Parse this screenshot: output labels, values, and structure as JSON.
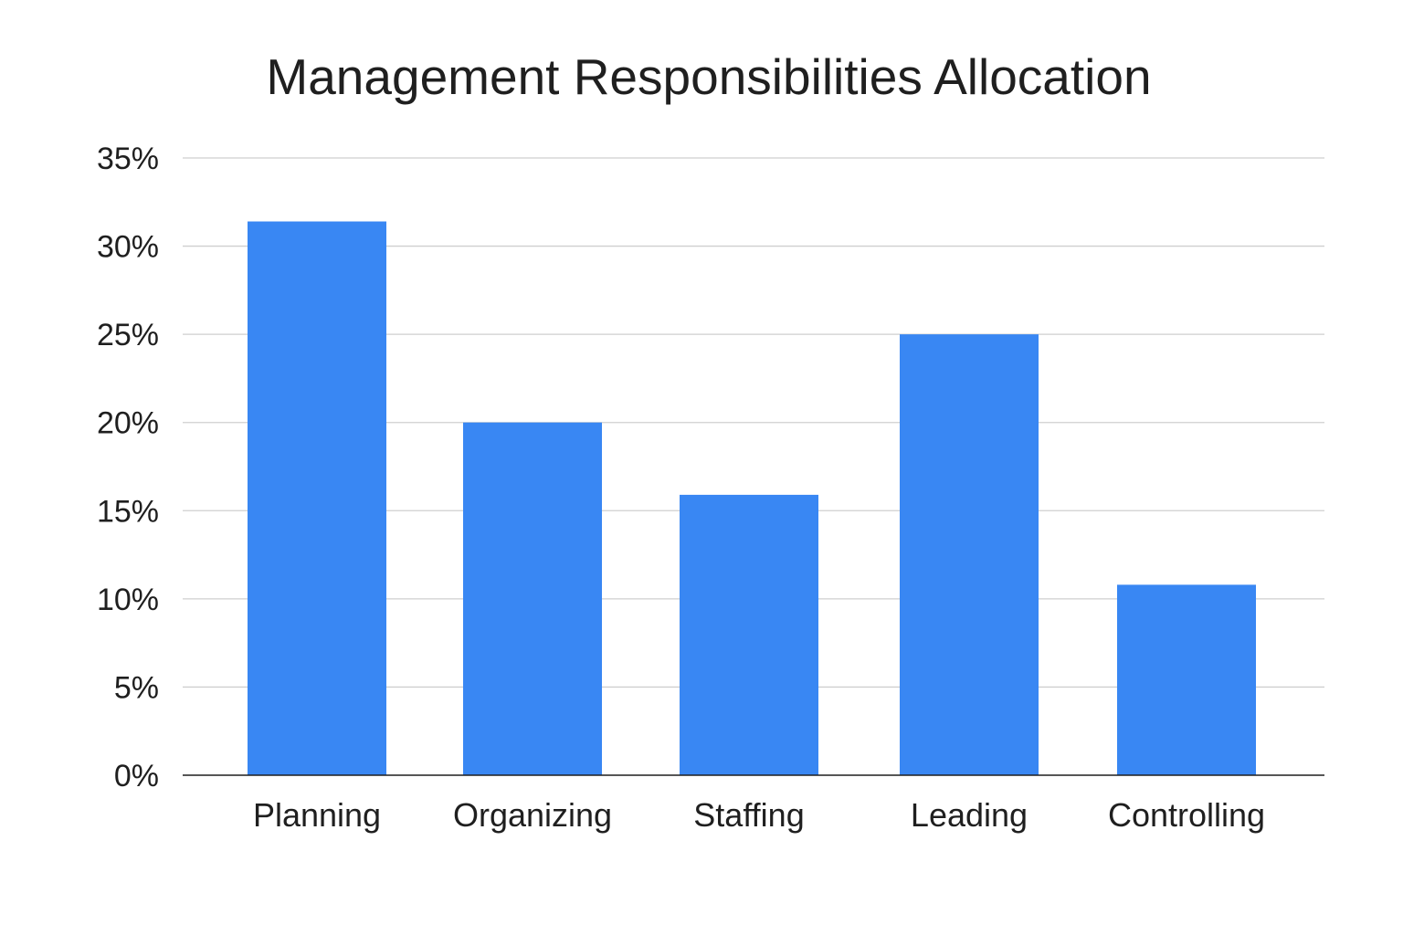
{
  "chart_data": {
    "type": "bar",
    "title": "Management Responsibilities Allocation",
    "xlabel": "",
    "ylabel": "",
    "categories": [
      "Planning",
      "Organizing",
      "Staffing",
      "Leading",
      "Controlling"
    ],
    "values": [
      31.4,
      20,
      15.9,
      25,
      10.8
    ],
    "ylim": [
      0,
      35
    ],
    "yticks": [
      0,
      5,
      10,
      15,
      20,
      25,
      30,
      35
    ],
    "ytick_labels": [
      "0%",
      "5%",
      "10%",
      "15%",
      "20%",
      "25%",
      "30%",
      "35%"
    ],
    "unit": "%",
    "grid": true,
    "legend": "none",
    "bar_color": "#3987f3",
    "grid_color": "#cfcfcf",
    "axis_color": "#1f1f1f"
  }
}
